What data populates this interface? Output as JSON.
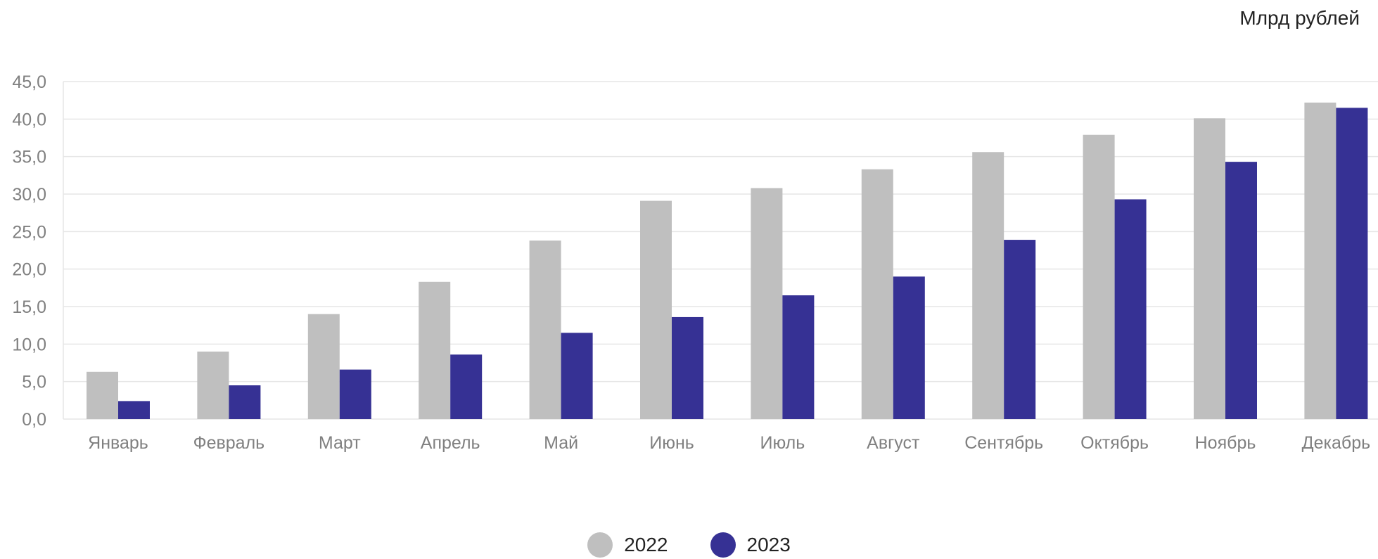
{
  "unit_label": "Млрд рублей",
  "colors": {
    "series_2022": "#bfbfbf",
    "series_2023": "#363194",
    "grid": "#e6e6e6",
    "tick_text": "#808080"
  },
  "chart_data": {
    "type": "bar",
    "categories": [
      "Январь",
      "Февраль",
      "Март",
      "Апрель",
      "Май",
      "Июнь",
      "Июль",
      "Август",
      "Сентябрь",
      "Октябрь",
      "Ноябрь",
      "Декабрь"
    ],
    "series": [
      {
        "name": "2022",
        "color": "#bfbfbf",
        "values": [
          6.3,
          9.0,
          14.0,
          18.3,
          23.8,
          29.1,
          30.8,
          33.3,
          35.6,
          37.9,
          40.1,
          42.2
        ]
      },
      {
        "name": "2023",
        "color": "#363194",
        "values": [
          2.4,
          4.5,
          6.6,
          8.6,
          11.5,
          13.6,
          16.5,
          19.0,
          23.9,
          29.3,
          34.3,
          41.5
        ]
      }
    ],
    "title": "",
    "xlabel": "",
    "ylabel": "",
    "ylim": [
      0,
      45
    ],
    "yticks": [
      "0,0",
      "5,0",
      "10,0",
      "15,0",
      "20,0",
      "25,0",
      "30,0",
      "35,0",
      "40,0",
      "45,0"
    ],
    "grid": true,
    "legend_position": "bottom-center"
  }
}
